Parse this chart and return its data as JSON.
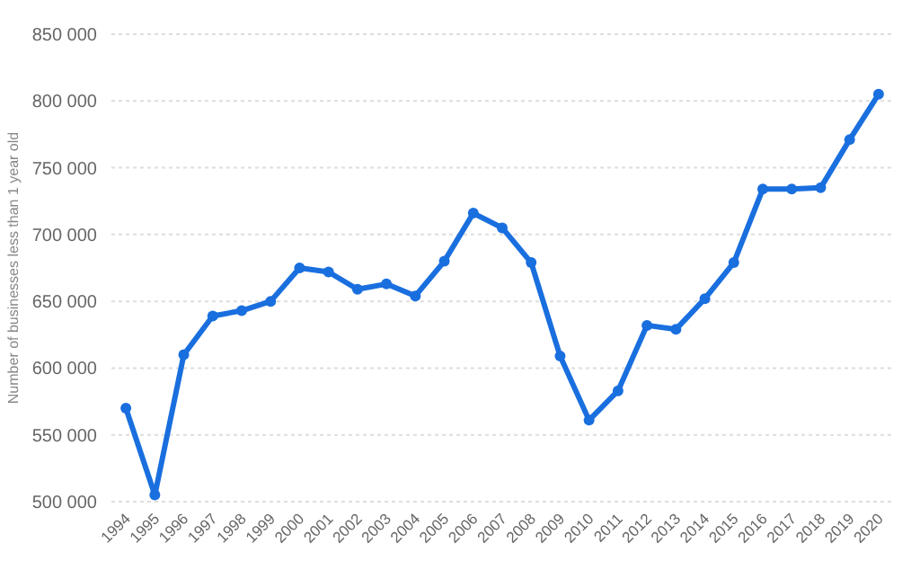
{
  "chart_data": {
    "type": "line",
    "ylabel": "Number of businesses less than 1 year old",
    "categories": [
      "1994",
      "1995",
      "1996",
      "1997",
      "1998",
      "1999",
      "2000",
      "2001",
      "2002",
      "2003",
      "2004",
      "2005",
      "2006",
      "2007",
      "2008",
      "2009",
      "2010",
      "2011",
      "2012",
      "2013",
      "2014",
      "2015",
      "2016",
      "2017",
      "2018",
      "2019",
      "2020"
    ],
    "series": [
      {
        "color": "#1a6fdf",
        "values": [
          570000,
          505000,
          610000,
          639000,
          643000,
          650000,
          675000,
          672000,
          659000,
          663000,
          654000,
          680000,
          716000,
          705000,
          679000,
          609000,
          561000,
          583000,
          632000,
          629000,
          652000,
          679000,
          734000,
          734000,
          735000,
          771000,
          805000
        ]
      }
    ],
    "ylim": [
      500000,
      850000
    ],
    "yticks": [
      {
        "value": 500000,
        "label": "500 000"
      },
      {
        "value": 550000,
        "label": "550 000"
      },
      {
        "value": 600000,
        "label": "600 000"
      },
      {
        "value": 650000,
        "label": "650 000"
      },
      {
        "value": 700000,
        "label": "700 000"
      },
      {
        "value": 750000,
        "label": "750 000"
      },
      {
        "value": 800000,
        "label": "800 000"
      },
      {
        "value": 850000,
        "label": "850 000"
      }
    ],
    "grid": "y",
    "marker": "circle",
    "line_style": "solid"
  }
}
